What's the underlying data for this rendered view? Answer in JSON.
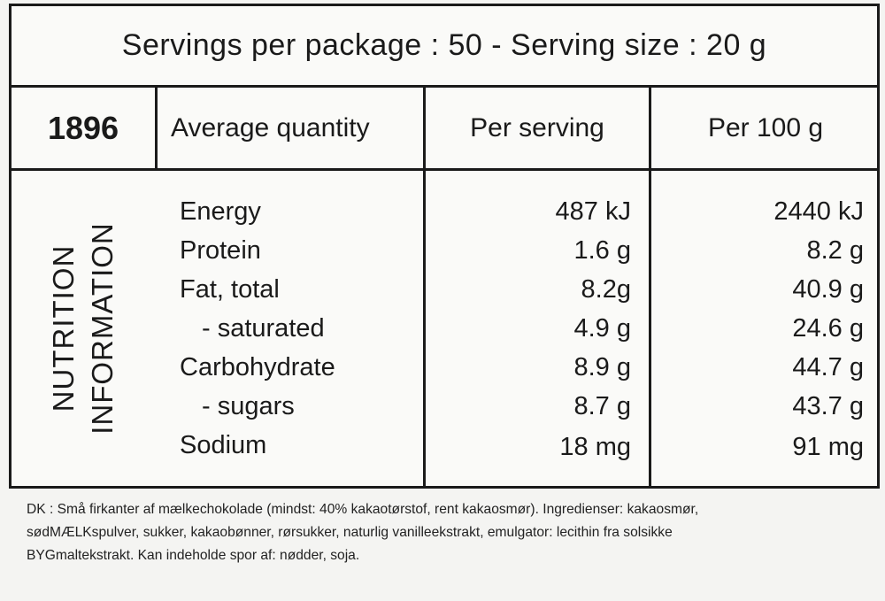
{
  "header": {
    "servings_label": "Servings per package : 50 - Serving size : 20 g"
  },
  "columns": {
    "code": "1896",
    "average_quantity": "Average quantity",
    "per_serving": "Per serving",
    "per_100g": "Per 100 g"
  },
  "side_label": {
    "line1": "NUTRITION",
    "line2": "INFORMATION"
  },
  "rows": [
    {
      "name": "Energy",
      "per_serving": "487 kJ",
      "per_100g": "2440 kJ"
    },
    {
      "name": "Protein",
      "per_serving": "1.6 g",
      "per_100g": "8.2 g"
    },
    {
      "name": "Fat, total",
      "per_serving": "8.2g",
      "per_100g": "40.9 g"
    },
    {
      "name": "- saturated",
      "per_serving": "4.9 g",
      "per_100g": "24.6 g"
    },
    {
      "name": "Carbohydrate",
      "per_serving": "8.9 g",
      "per_100g": "44.7 g"
    },
    {
      "name": "- sugars",
      "per_serving": "8.7 g",
      "per_100g": "43.7 g"
    },
    {
      "name": "Sodium",
      "per_serving": "18 mg",
      "per_100g": "91 mg"
    }
  ],
  "footer": {
    "line1": "DK : Små firkanter af mælkechokolade (mindst: 40% kakaotørstof, rent kakaosmør). Ingredienser: kakaosmør,",
    "line2": "sødMÆLKspulver, sukker, kakaobønner, rørsukker, naturlig vanilleekstrakt, emulgator: lecithin fra solsikke",
    "line3": "BYGmaltekstrakt. Kan indeholde spor af: nødder, soja."
  }
}
